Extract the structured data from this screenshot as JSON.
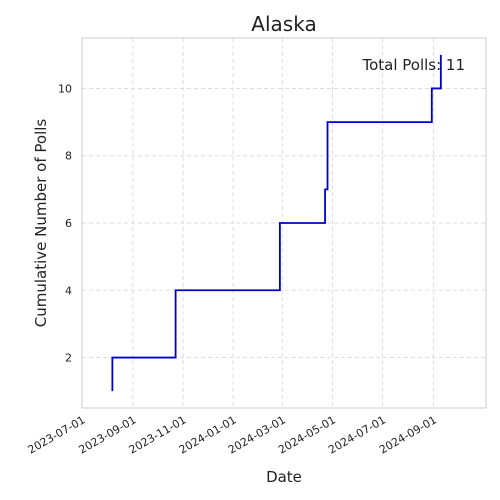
{
  "chart_data": {
    "type": "line",
    "title": "Alaska",
    "xlabel": "Date",
    "ylabel": "Cumulative Number of Polls",
    "annotation": "Total Polls: 11",
    "grid": true,
    "line_color": "#0000cc",
    "series": [
      {
        "x": [
          "2023-08-07",
          "2023-08-07",
          "2023-10-23",
          "2023-10-23",
          "2024-02-27",
          "2024-04-22",
          "2024-04-25",
          "2024-08-30",
          "2024-09-10",
          "2024-09-10"
        ],
        "y": [
          1,
          2,
          2,
          4,
          6,
          7,
          9,
          10,
          10,
          11
        ],
        "step": "post"
      }
    ],
    "xlim": [
      "2023-07-01",
      "2024-11-04"
    ],
    "ylim": [
      0.5,
      11.5
    ],
    "x_ticks": [
      "2023-07-01",
      "2023-09-01",
      "2023-11-01",
      "2024-01-01",
      "2024-03-01",
      "2024-05-01",
      "2024-07-01",
      "2024-09-01"
    ],
    "y_ticks": [
      2,
      4,
      6,
      8,
      10
    ]
  }
}
